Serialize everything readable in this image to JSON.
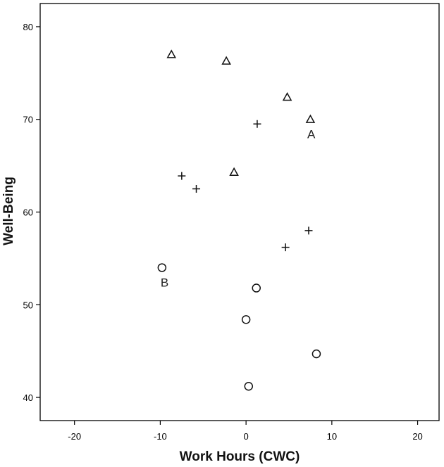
{
  "chart_data": {
    "type": "scatter",
    "xlabel": "Work Hours (CWC)",
    "ylabel": "Well-Being",
    "xlim": [
      -24,
      22.5
    ],
    "ylim": [
      37.5,
      82.5
    ],
    "xticks": [
      -20,
      -10,
      0,
      10,
      20
    ],
    "yticks": [
      40,
      50,
      60,
      70,
      80
    ],
    "xtick_labels": [
      "-20",
      "-10",
      "0",
      "10",
      "20"
    ],
    "ytick_labels": [
      "40",
      "50",
      "60",
      "70",
      "80"
    ],
    "grid": false,
    "legend": "none",
    "series": [
      {
        "marker": "triangle",
        "points": [
          {
            "x": -8.7,
            "y": 77.0
          },
          {
            "x": -2.3,
            "y": 76.3
          },
          {
            "x": 4.8,
            "y": 72.4
          },
          {
            "x": 7.5,
            "y": 70.0
          },
          {
            "x": -1.4,
            "y": 64.3
          }
        ]
      },
      {
        "marker": "plus",
        "points": [
          {
            "x": 1.3,
            "y": 69.5
          },
          {
            "x": -7.5,
            "y": 63.9
          },
          {
            "x": -5.8,
            "y": 62.5
          },
          {
            "x": 7.3,
            "y": 58.0
          },
          {
            "x": 4.6,
            "y": 56.2
          }
        ]
      },
      {
        "marker": "circle",
        "points": [
          {
            "x": -9.8,
            "y": 54.0
          },
          {
            "x": 1.2,
            "y": 51.8
          },
          {
            "x": 0.0,
            "y": 48.4
          },
          {
            "x": 8.2,
            "y": 44.7
          },
          {
            "x": 0.3,
            "y": 41.2
          }
        ]
      }
    ],
    "annotations": [
      {
        "text": "A",
        "x": 7.6,
        "y": 68.5
      },
      {
        "text": "B",
        "x": -9.5,
        "y": 52.5
      }
    ]
  }
}
